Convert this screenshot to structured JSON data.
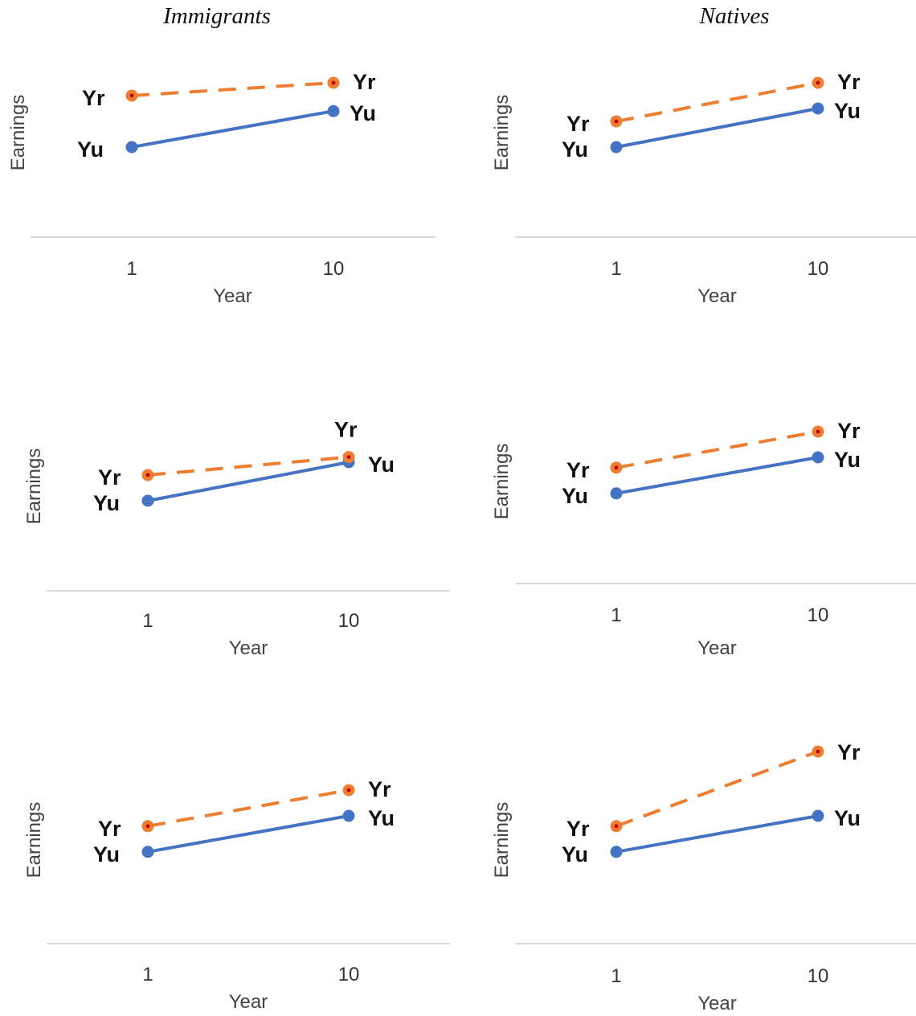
{
  "columns": [
    "Immigrants",
    "Natives"
  ],
  "colors": {
    "Yr": "#ed7d31",
    "Yu": "#4472c4",
    "axis": "#d9d9d9"
  },
  "chart_data": [
    {
      "type": "line",
      "column": "Immigrants",
      "row": 1,
      "x": [
        1,
        10
      ],
      "xlabel": "Year",
      "ylabel": "Earnings",
      "series": [
        {
          "name": "Yr",
          "values": [
            75,
            80
          ],
          "style": "dashed"
        },
        {
          "name": "Yu",
          "values": [
            55,
            69
          ],
          "style": "solid"
        }
      ]
    },
    {
      "type": "line",
      "column": "Natives",
      "row": 1,
      "x": [
        1,
        10
      ],
      "xlabel": "Year",
      "ylabel": "Earnings",
      "series": [
        {
          "name": "Yr",
          "values": [
            65,
            80
          ],
          "style": "dashed"
        },
        {
          "name": "Yu",
          "values": [
            55,
            70
          ],
          "style": "solid"
        }
      ]
    },
    {
      "type": "line",
      "column": "Immigrants",
      "row": 2,
      "x": [
        1,
        10
      ],
      "xlabel": "Year",
      "ylabel": "Earnings",
      "series": [
        {
          "name": "Yr",
          "values": [
            65,
            72
          ],
          "style": "dashed"
        },
        {
          "name": "Yu",
          "values": [
            55,
            70
          ],
          "style": "solid"
        }
      ]
    },
    {
      "type": "line",
      "column": "Natives",
      "row": 2,
      "x": [
        1,
        10
      ],
      "xlabel": "Year",
      "ylabel": "Earnings",
      "series": [
        {
          "name": "Yr",
          "values": [
            66,
            80
          ],
          "style": "dashed"
        },
        {
          "name": "Yu",
          "values": [
            56,
            70
          ],
          "style": "solid"
        }
      ]
    },
    {
      "type": "line",
      "column": "Immigrants",
      "row": 3,
      "x": [
        1,
        10
      ],
      "xlabel": "Year",
      "ylabel": "Earnings",
      "series": [
        {
          "name": "Yr",
          "values": [
            66,
            80
          ],
          "style": "dashed"
        },
        {
          "name": "Yu",
          "values": [
            56,
            70
          ],
          "style": "solid"
        }
      ]
    },
    {
      "type": "line",
      "column": "Natives",
      "row": 3,
      "x": [
        1,
        10
      ],
      "xlabel": "Year",
      "ylabel": "Earnings",
      "series": [
        {
          "name": "Yr",
          "values": [
            66,
            95
          ],
          "style": "dashed"
        },
        {
          "name": "Yu",
          "values": [
            56,
            70
          ],
          "style": "solid"
        }
      ]
    }
  ]
}
